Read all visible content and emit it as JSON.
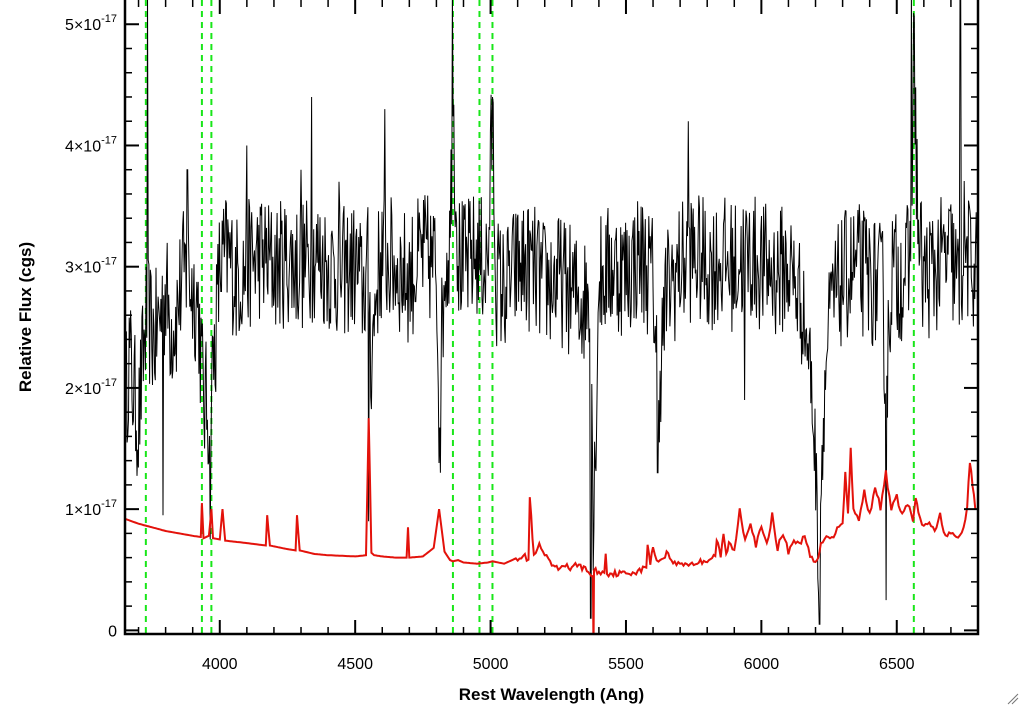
{
  "chart_data": {
    "type": "line",
    "xlabel": "Rest Wavelength (Ang)",
    "ylabel": "Relative Flux (cgs)",
    "xlim": [
      3650,
      6800
    ],
    "ylim": [
      -3e-19,
      5.2e-17
    ],
    "x_ticks": [
      {
        "value": 4000,
        "label": "4000"
      },
      {
        "value": 4500,
        "label": "4500"
      },
      {
        "value": 5000,
        "label": "5000"
      },
      {
        "value": 5500,
        "label": "5500"
      },
      {
        "value": 6000,
        "label": "6000"
      },
      {
        "value": 6500,
        "label": "6500"
      }
    ],
    "y_ticks": [
      {
        "value": 0,
        "mantissa": "0",
        "exponent": ""
      },
      {
        "value": 1e-17,
        "mantissa": "1×10",
        "exponent": "-17"
      },
      {
        "value": 2e-17,
        "mantissa": "2×10",
        "exponent": "-17"
      },
      {
        "value": 3e-17,
        "mantissa": "3×10",
        "exponent": "-17"
      },
      {
        "value": 4e-17,
        "mantissa": "4×10",
        "exponent": "-17"
      },
      {
        "value": 5e-17,
        "mantissa": "5×10",
        "exponent": "-17"
      }
    ],
    "vlines": [
      3727,
      3934,
      3969,
      4861,
      4959,
      5007,
      6563
    ],
    "colors": {
      "observed": "#000000",
      "model": "#e3120b",
      "vlines": "#19e619"
    },
    "series": [
      {
        "key": "observed",
        "x": [
          3650,
          3665,
          3680,
          3700,
          3715,
          3730,
          3745,
          3760,
          3780,
          3800,
          3820,
          3840,
          3860,
          3880,
          3900,
          3920,
          3940,
          3960,
          3980,
          4000,
          4030,
          4060,
          4100,
          4150,
          4200,
          4250,
          4300,
          4350,
          4400,
          4450,
          4500,
          4530,
          4550,
          4560,
          4580,
          4600,
          4650,
          4700,
          4750,
          4800,
          4810,
          4830,
          4850,
          4861,
          4880,
          4900,
          4950,
          4990,
          5007,
          5020,
          5050,
          5100,
          5150,
          5200,
          5250,
          5300,
          5340,
          5370,
          5380,
          5400,
          5450,
          5500,
          5550,
          5600,
          5620,
          5650,
          5700,
          5750,
          5800,
          5850,
          5900,
          5950,
          6000,
          6050,
          6100,
          6150,
          6180,
          6200,
          6210,
          6230,
          6250,
          6300,
          6350,
          6400,
          6450,
          6460,
          6480,
          6500,
          6550,
          6563,
          6580,
          6600,
          6650,
          6700,
          6730,
          6750,
          6770,
          6790
        ],
        "y": [
          1.8,
          2.3,
          2.0,
          1.7,
          2.2,
          2.6,
          2.5,
          2.4,
          2.6,
          2.8,
          2.5,
          2.6,
          2.9,
          3.0,
          2.8,
          2.7,
          1.9,
          1.8,
          2.3,
          3.0,
          3.1,
          2.9,
          3.0,
          3.1,
          3.0,
          3.05,
          3.0,
          3.1,
          3.0,
          2.95,
          3.0,
          2.8,
          3.0,
          2.2,
          2.9,
          3.1,
          3.0,
          2.9,
          3.1,
          3.0,
          1.8,
          3.0,
          3.2,
          4.4,
          3.1,
          3.0,
          3.1,
          3.0,
          4.3,
          2.9,
          2.8,
          3.0,
          3.0,
          2.85,
          2.9,
          2.8,
          2.7,
          2.8,
          0.8,
          2.9,
          3.0,
          2.95,
          3.1,
          2.9,
          2.0,
          2.8,
          3.0,
          3.1,
          3.0,
          3.05,
          3.0,
          3.1,
          3.0,
          2.95,
          3.0,
          2.7,
          2.2,
          1.4,
          0.6,
          1.8,
          2.6,
          2.9,
          3.0,
          2.9,
          2.8,
          1.8,
          3.0,
          2.9,
          3.0,
          4.8,
          3.2,
          2.9,
          3.0,
          3.1,
          2.8,
          3.2,
          3.0,
          3.0
        ]
      },
      {
        "key": "model",
        "x": [
          3650,
          3700,
          3750,
          3800,
          3850,
          3900,
          3930,
          3934,
          3940,
          3960,
          3969,
          3975,
          4000,
          4010,
          4020,
          4100,
          4170,
          4175,
          4185,
          4250,
          4280,
          4285,
          4295,
          4350,
          4400,
          4500,
          4540,
          4550,
          4560,
          4570,
          4600,
          4650,
          4690,
          4695,
          4700,
          4750,
          4790,
          4810,
          4830,
          4850,
          4861,
          4880,
          4900,
          4950,
          4990,
          5007,
          5050,
          5080,
          5100,
          5120,
          5140,
          5145,
          5160,
          5180,
          5200,
          5220,
          5250,
          5270,
          5300,
          5320,
          5350,
          5378,
          5380,
          5382,
          5400,
          5420,
          5425,
          5430,
          5500,
          5550,
          5575,
          5580,
          5590,
          5600,
          5620,
          5650,
          5680,
          5700,
          5750,
          5800,
          5830,
          5835,
          5850,
          5860,
          5870,
          5880,
          5900,
          5920,
          5940,
          5960,
          5980,
          6000,
          6020,
          6040,
          6060,
          6080,
          6100,
          6120,
          6140,
          6160,
          6180,
          6200,
          6210,
          6220,
          6240,
          6260,
          6280,
          6300,
          6310,
          6320,
          6330,
          6340,
          6360,
          6380,
          6400,
          6420,
          6440,
          6460,
          6480,
          6500,
          6520,
          6540,
          6560,
          6570,
          6580,
          6600,
          6620,
          6640,
          6660,
          6680,
          6700,
          6720,
          6740,
          6760,
          6770,
          6780,
          6790
        ],
        "y": [
          0.92,
          0.88,
          0.85,
          0.82,
          0.8,
          0.78,
          0.77,
          1.05,
          0.76,
          0.78,
          1.0,
          0.76,
          0.75,
          1.0,
          0.74,
          0.72,
          0.7,
          0.95,
          0.7,
          0.67,
          0.66,
          0.95,
          0.66,
          0.63,
          0.62,
          0.61,
          0.62,
          1.75,
          0.64,
          0.62,
          0.61,
          0.6,
          0.6,
          0.85,
          0.6,
          0.61,
          0.68,
          1.0,
          0.65,
          0.58,
          0.57,
          0.58,
          0.56,
          0.55,
          0.56,
          0.57,
          0.55,
          0.58,
          0.6,
          0.62,
          0.58,
          1.1,
          0.6,
          0.7,
          0.62,
          0.55,
          0.5,
          0.55,
          0.5,
          0.55,
          0.5,
          0.45,
          -0.2,
          0.5,
          0.48,
          0.47,
          0.65,
          0.47,
          0.47,
          0.49,
          0.52,
          0.72,
          0.55,
          0.68,
          0.56,
          0.64,
          0.55,
          0.55,
          0.55,
          0.58,
          0.62,
          0.75,
          0.6,
          0.8,
          0.62,
          0.72,
          0.65,
          1.0,
          0.75,
          0.9,
          0.7,
          0.85,
          0.7,
          0.95,
          0.68,
          0.8,
          0.65,
          0.75,
          0.7,
          0.8,
          0.6,
          0.55,
          0.6,
          0.7,
          0.8,
          0.75,
          0.85,
          0.9,
          1.3,
          0.95,
          1.5,
          1.0,
          0.9,
          1.15,
          0.95,
          1.2,
          1.0,
          1.3,
          1.0,
          1.1,
          0.95,
          1.05,
          0.9,
          1.1,
          0.95,
          0.85,
          0.9,
          0.8,
          0.95,
          0.78,
          0.8,
          0.75,
          0.8,
          1.0,
          1.4,
          1.2,
          1.0
        ]
      }
    ],
    "spikes_observed": [
      {
        "x": 3732,
        "y": 5.3
      },
      {
        "x": 3790,
        "y": 0.95
      },
      {
        "x": 3880,
        "y": 3.8
      },
      {
        "x": 3965,
        "y": 0.75
      },
      {
        "x": 4100,
        "y": 4.0
      },
      {
        "x": 4300,
        "y": 3.8
      },
      {
        "x": 4340,
        "y": 4.4
      },
      {
        "x": 4440,
        "y": 3.7
      },
      {
        "x": 4550,
        "y": 0.9
      },
      {
        "x": 4610,
        "y": 4.3
      },
      {
        "x": 4815,
        "y": 1.3
      },
      {
        "x": 4860,
        "y": 5.3
      },
      {
        "x": 5007,
        "y": 4.4
      },
      {
        "x": 5370,
        "y": 0.1
      },
      {
        "x": 5617,
        "y": 1.3
      },
      {
        "x": 5730,
        "y": 4.2
      },
      {
        "x": 5937,
        "y": 1.9
      },
      {
        "x": 6215,
        "y": 0.05
      },
      {
        "x": 6460,
        "y": 0.25
      },
      {
        "x": 6555,
        "y": 5.3
      },
      {
        "x": 6735,
        "y": 5.3
      }
    ]
  }
}
